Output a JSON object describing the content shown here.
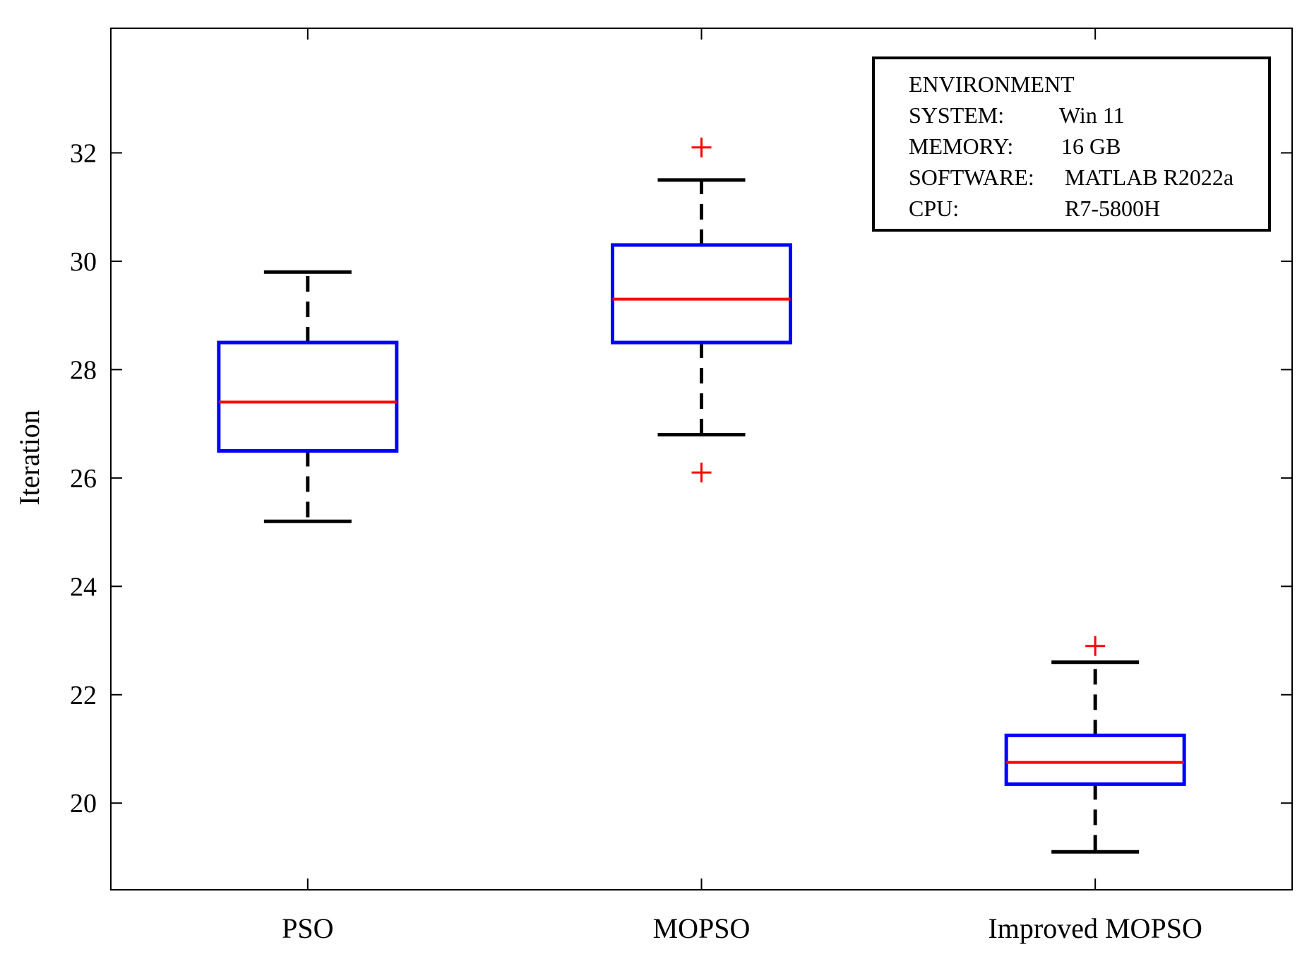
{
  "chart_data": {
    "type": "boxplot",
    "title": "",
    "xlabel": "",
    "ylabel": "Iteration",
    "ylim": [
      18.4,
      34.3
    ],
    "yticks": [
      20,
      22,
      24,
      26,
      28,
      30,
      32
    ],
    "grid": false,
    "colors": {
      "box": "#0000ff",
      "median": "#ff0000",
      "whisker": "#000000",
      "outlier": "#ff0000",
      "axis": "#000000"
    },
    "categories": [
      "PSO",
      "MOPSO",
      "Improved MOPSO"
    ],
    "boxes": [
      {
        "name": "PSO",
        "whisker_low": 25.2,
        "q1": 26.5,
        "median": 27.4,
        "q3": 28.5,
        "whisker_high": 29.8,
        "outliers": []
      },
      {
        "name": "MOPSO",
        "whisker_low": 26.8,
        "q1": 28.5,
        "median": 29.3,
        "q3": 30.3,
        "whisker_high": 31.5,
        "outliers": [
          32.1,
          26.1
        ]
      },
      {
        "name": "Improved MOPSO",
        "whisker_low": 19.1,
        "q1": 20.35,
        "median": 20.75,
        "q3": 21.25,
        "whisker_high": 22.6,
        "outliers": [
          22.9
        ]
      }
    ],
    "annotation": {
      "placement": "top-right",
      "heading": "ENVIRONMENT",
      "rows": [
        {
          "label": "SYSTEM:",
          "value": "Win 11"
        },
        {
          "label": "MEMORY:",
          "value": "16 GB"
        },
        {
          "label": "SOFTWARE:",
          "value": "MATLAB R2022a"
        },
        {
          "label": "CPU:",
          "value": "R7-5800H"
        }
      ]
    }
  }
}
